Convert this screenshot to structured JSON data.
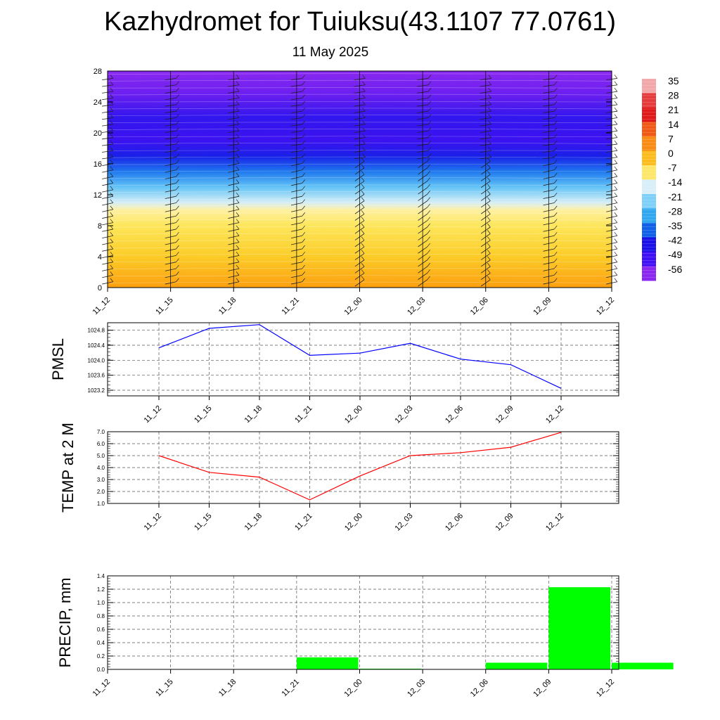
{
  "header": {
    "title": "Kazhydromet for Tuiuksu(43.1107 77.0761)",
    "date": "11 May 2025"
  },
  "colors": {
    "pmsl_line": "#0000ff",
    "temp_line": "#ff0000",
    "precip_bar": "#00ff00"
  },
  "chart_data": [
    {
      "type": "heatmap",
      "description_of_fill": "temperature (°C) cross-section with wind barbs",
      "x": [
        "11_12",
        "11_15",
        "11_18",
        "11_21",
        "12_00",
        "12_03",
        "12_06",
        "12_09",
        "12_12"
      ],
      "ylim": [
        0,
        28
      ],
      "yticks": [
        0,
        4,
        8,
        12,
        16,
        20,
        24,
        28
      ],
      "layers": [
        {
          "height": 0,
          "value": 4
        },
        {
          "height": 4,
          "value": -1
        },
        {
          "height": 8,
          "value": -4
        },
        {
          "height": 10,
          "value": -8
        },
        {
          "height": 11,
          "value": -14
        },
        {
          "height": 13,
          "value": -22
        },
        {
          "height": 15,
          "value": -32
        },
        {
          "height": 17,
          "value": -45
        },
        {
          "height": 19,
          "value": -55
        },
        {
          "height": 22,
          "value": -52
        },
        {
          "height": 25,
          "value": -58
        },
        {
          "height": 28,
          "value": -60
        }
      ],
      "colorbar": {
        "labels": [
          "35",
          "28",
          "21",
          "14",
          "7",
          "0",
          "-7",
          "-14",
          "-21",
          "-28",
          "-35",
          "-42",
          "-49",
          "-56"
        ],
        "colors": [
          "#f2a8a8",
          "#e63c3c",
          "#e01919",
          "#f05a14",
          "#fa8c14",
          "#fcbc1e",
          "#fde668",
          "#d8eef8",
          "#7ed0f8",
          "#30a8f0",
          "#1060e8",
          "#1a10e8",
          "#4010f4",
          "#8a28f0"
        ]
      }
    },
    {
      "type": "line",
      "name": "PMSL",
      "ylabel": "PMSL",
      "x": [
        "11_12",
        "11_15",
        "11_18",
        "11_21",
        "12_00",
        "12_03",
        "12_06",
        "12_09",
        "12_12"
      ],
      "values": [
        1024.33,
        1024.85,
        1024.95,
        1024.13,
        1024.19,
        1024.45,
        1024.03,
        1023.88,
        1023.25
      ],
      "ylim": [
        1023.05,
        1025.0
      ],
      "yticks": [
        "1023.2",
        "1023.6",
        "1024.0",
        "1024.4",
        "1024.8"
      ]
    },
    {
      "type": "line",
      "name": "TEMP at 2 M",
      "ylabel": "TEMP at 2 M",
      "x": [
        "11_12",
        "11_15",
        "11_18",
        "11_21",
        "12_00",
        "12_03",
        "12_06",
        "12_09",
        "12_12"
      ],
      "values": [
        5.0,
        3.6,
        3.2,
        1.3,
        3.3,
        5.0,
        5.25,
        5.7,
        6.95
      ],
      "ylim": [
        1.0,
        7.0
      ],
      "yticks": [
        "1.0",
        "2.0",
        "3.0",
        "4.0",
        "5.0",
        "6.0",
        "7.0"
      ]
    },
    {
      "type": "bar",
      "name": "PRECIP, mm",
      "ylabel": "PRECIP, mm",
      "categories": [
        "11_12",
        "11_15",
        "11_18",
        "11_21",
        "12_00",
        "12_03",
        "12_06",
        "12_09",
        "12_12"
      ],
      "values": [
        0,
        0,
        0,
        0.18,
        0.01,
        0,
        0.1,
        1.23,
        0.1
      ],
      "ylim": [
        0,
        1.4
      ],
      "yticks": [
        "0.0",
        "0.2",
        "0.4",
        "0.6",
        "0.8",
        "1.0",
        "1.2",
        "1.4"
      ]
    }
  ]
}
